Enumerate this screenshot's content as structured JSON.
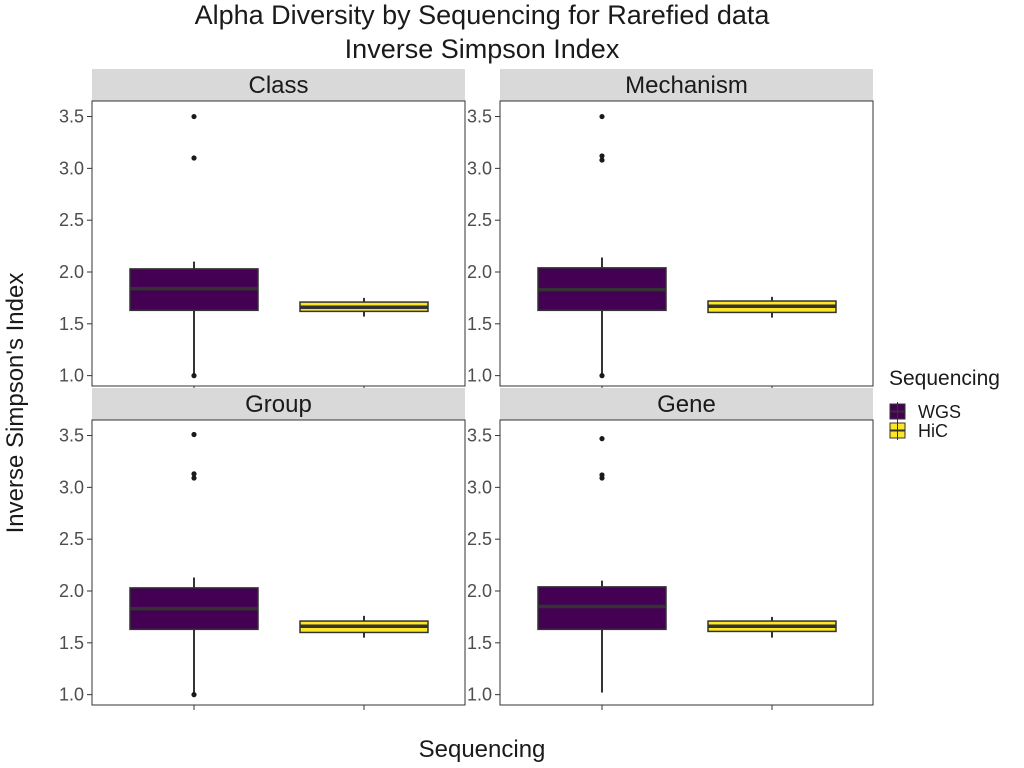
{
  "chart_data": {
    "type": "box",
    "title": "Alpha Diversity by Sequencing for Rarefied data",
    "subtitle": "Inverse Simpson Index",
    "xlabel": "Sequencing",
    "ylabel": "Inverse Simpson's Index",
    "ylim": [
      0.9,
      3.65
    ],
    "yticks": [
      "1.0",
      "1.5",
      "2.0",
      "2.5",
      "3.0",
      "3.5"
    ],
    "grid": false,
    "legend": {
      "title": "Sequencing",
      "position": "right",
      "entries": [
        {
          "label": "WGS",
          "color": "#440154"
        },
        {
          "label": "HiC",
          "color": "#FDE725"
        }
      ]
    },
    "groups": [
      "WGS",
      "HiC"
    ],
    "colors": {
      "WGS": "#440154",
      "HiC": "#FDE725",
      "strip_bg": "#d9d9d9",
      "median_line": "#333333"
    },
    "panels": [
      {
        "name": "Class",
        "boxes": [
          {
            "group": "WGS",
            "q1": 1.63,
            "median": 1.84,
            "q3": 2.03,
            "whisker_low": 1.0,
            "whisker_high": 2.1,
            "outliers": [
              1.0,
              3.1,
              3.5
            ]
          },
          {
            "group": "HiC",
            "q1": 1.62,
            "median": 1.66,
            "q3": 1.71,
            "whisker_low": 1.57,
            "whisker_high": 1.75,
            "outliers": []
          }
        ]
      },
      {
        "name": "Mechanism",
        "boxes": [
          {
            "group": "WGS",
            "q1": 1.63,
            "median": 1.83,
            "q3": 2.04,
            "whisker_low": 1.0,
            "whisker_high": 2.14,
            "outliers": [
              1.0,
              3.08,
              3.12,
              3.5
            ]
          },
          {
            "group": "HiC",
            "q1": 1.61,
            "median": 1.67,
            "q3": 1.72,
            "whisker_low": 1.56,
            "whisker_high": 1.76,
            "outliers": []
          }
        ]
      },
      {
        "name": "Group",
        "boxes": [
          {
            "group": "WGS",
            "q1": 1.63,
            "median": 1.83,
            "q3": 2.03,
            "whisker_low": 1.0,
            "whisker_high": 2.13,
            "outliers": [
              1.0,
              3.09,
              3.13,
              3.51
            ]
          },
          {
            "group": "HiC",
            "q1": 1.6,
            "median": 1.66,
            "q3": 1.71,
            "whisker_low": 1.55,
            "whisker_high": 1.76,
            "outliers": []
          }
        ]
      },
      {
        "name": "Gene",
        "boxes": [
          {
            "group": "WGS",
            "q1": 1.63,
            "median": 1.85,
            "q3": 2.04,
            "whisker_low": 1.02,
            "whisker_high": 2.1,
            "outliers": [
              3.09,
              3.12,
              3.47
            ]
          },
          {
            "group": "HiC",
            "q1": 1.61,
            "median": 1.66,
            "q3": 1.71,
            "whisker_low": 1.55,
            "whisker_high": 1.75,
            "outliers": []
          }
        ]
      }
    ]
  }
}
